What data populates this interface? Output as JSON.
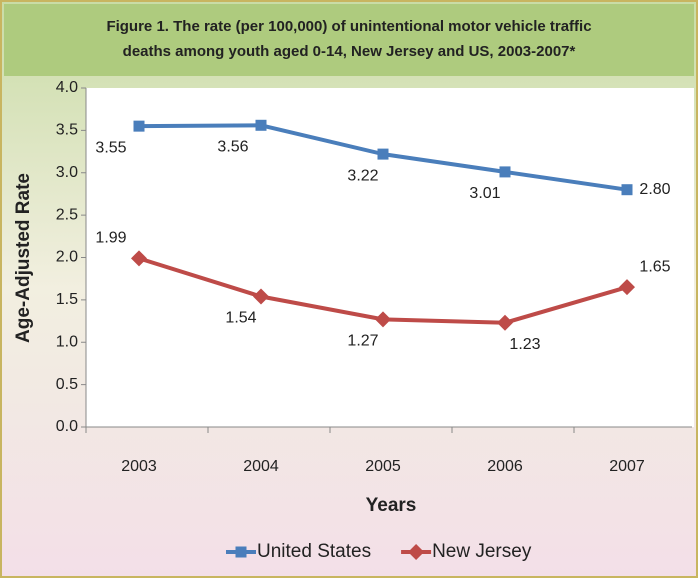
{
  "chart_data": {
    "type": "line",
    "title": [
      "Figure 1. The rate (per 100,000) of unintentional motor vehicle traffic",
      "deaths among youth aged 0-14, New Jersey and US, 2003-2007*"
    ],
    "x_label": "Years",
    "y_label": "Age-Adjusted Rate",
    "categories": [
      "2003",
      "2004",
      "2005",
      "2006",
      "2007"
    ],
    "series": [
      {
        "name": "United States",
        "color": "#4a7ebb",
        "marker": "square",
        "values": [
          3.55,
          3.56,
          3.22,
          3.01,
          2.8
        ],
        "value_labels": [
          "3.55",
          "3.56",
          "3.22",
          "3.01",
          "2.80"
        ]
      },
      {
        "name": "New Jersey",
        "color": "#be4b48",
        "marker": "diamond",
        "values": [
          1.99,
          1.54,
          1.27,
          1.23,
          1.65
        ],
        "value_labels": [
          "1.99",
          "1.54",
          "1.27",
          "1.23",
          "1.65"
        ]
      }
    ],
    "ylim": [
      0,
      4
    ],
    "yticks": [
      {
        "value": 0,
        "label": "0.0"
      },
      {
        "value": 0.5,
        "label": "0.5"
      },
      {
        "value": 1,
        "label": "1.0"
      },
      {
        "value": 1.5,
        "label": "1.5"
      },
      {
        "value": 2,
        "label": "2.0"
      },
      {
        "value": 2.5,
        "label": "2.5"
      },
      {
        "value": 3,
        "label": "3.0"
      },
      {
        "value": 3.5,
        "label": "3.5"
      },
      {
        "value": 4,
        "label": "4.0"
      }
    ],
    "grid": false,
    "legend": "bottom"
  }
}
